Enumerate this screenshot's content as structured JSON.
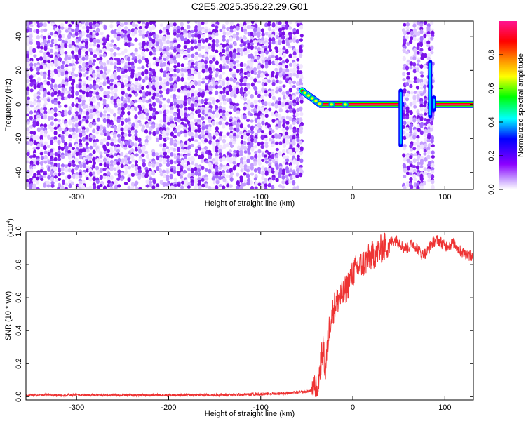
{
  "figure_title": "C2E5.2025.356.22.29.G01",
  "chart_data": [
    {
      "type": "heatmap",
      "title": "C2E5.2025.356.22.29.G01",
      "xlabel": "Height of straight line (km)",
      "ylabel": "Frequency (Hz)",
      "xlim": [
        -355,
        131
      ],
      "ylim": [
        -50,
        49
      ],
      "xticks": [
        -300,
        -200,
        -100,
        0,
        100
      ],
      "xtick_labels": [
        "-300",
        "-200",
        "-100",
        "0",
        "100"
      ],
      "yticks": [
        -40,
        -20,
        0,
        20,
        40
      ],
      "ytick_labels": [
        "-40",
        "-20",
        "0",
        "20",
        "40"
      ],
      "noise_regions": [
        [
          -355,
          -55
        ],
        [
          54,
          85
        ]
      ],
      "tone": {
        "frequency": 0,
        "segments": [
          [
            -55,
            52
          ],
          [
            85,
            131
          ]
        ],
        "offset_start": 8,
        "offset_decay_end": -35
      },
      "spikes": [
        {
          "x": 52,
          "fmin": -24,
          "fmax": 8
        },
        {
          "x": 84,
          "fmin": -7,
          "fmax": 25
        },
        {
          "x": 88,
          "fmin": -3,
          "fmax": 4
        }
      ],
      "colorbar": {
        "label": "Normalized spectral amplitude",
        "range": [
          0,
          1
        ],
        "ticks": [
          0.0,
          0.2,
          0.4,
          0.6,
          0.8
        ],
        "tick_labels": [
          "0.0",
          "0.2",
          "0.4",
          "0.6",
          "0.8"
        ],
        "colors": [
          "#ffffff",
          "#8b00ff",
          "#0000ff",
          "#00ffff",
          "#00ff00",
          "#ffff00",
          "#ff8000",
          "#ff0000",
          "#ff1493"
        ]
      },
      "grid": false
    },
    {
      "type": "line",
      "xlabel": "Height of straight line (km)",
      "ylabel": "SNR (10 * v/v)",
      "y_multiplier_label": "(x10",
      "y_multiplier_exp": "4",
      "y_multiplier_close": ")",
      "xlim": [
        -355,
        131
      ],
      "ylim": [
        -0.02,
        1.0
      ],
      "xticks": [
        -300,
        -200,
        -100,
        0,
        100
      ],
      "xtick_labels": [
        "-300",
        "-200",
        "-100",
        "0",
        "100"
      ],
      "yticks": [
        0.0,
        0.2,
        0.4,
        0.6,
        0.8,
        1.0
      ],
      "ytick_labels": [
        "0.0",
        "0.2",
        "0.4",
        "0.6",
        "0.8",
        "1.0"
      ],
      "color": "#ee3333",
      "grid": false,
      "series": [
        {
          "x": [
            -355,
            -300,
            -250,
            -200,
            -150,
            -100,
            -80,
            -60,
            -50,
            -42,
            -38,
            -35,
            -32,
            -30,
            -28,
            -25,
            -20,
            -15,
            -10,
            -5,
            0,
            5,
            10,
            20,
            30,
            40,
            45,
            50,
            55,
            60,
            65,
            70,
            75,
            80,
            85,
            90,
            95,
            100,
            105,
            110,
            115,
            120,
            125,
            131
          ],
          "y": [
            0.01,
            0.01,
            0.01,
            0.01,
            0.01,
            0.015,
            0.02,
            0.025,
            0.03,
            0.04,
            0.06,
            0.2,
            0.3,
            0.15,
            0.27,
            0.45,
            0.55,
            0.6,
            0.62,
            0.68,
            0.75,
            0.78,
            0.8,
            0.85,
            0.89,
            0.93,
            0.95,
            0.94,
            0.9,
            0.9,
            0.93,
            0.9,
            0.86,
            0.87,
            0.92,
            0.95,
            0.94,
            0.91,
            0.92,
            0.93,
            0.89,
            0.87,
            0.86,
            0.84
          ]
        }
      ]
    }
  ]
}
